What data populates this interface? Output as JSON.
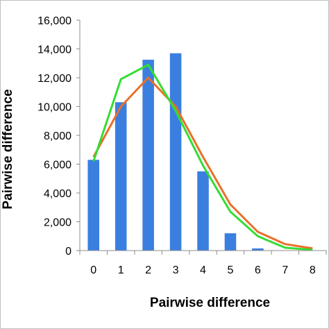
{
  "chart_data": {
    "type": "bar",
    "title": "",
    "xlabel": "Pairwise difference",
    "ylabel": "Pairwise difference",
    "categories": [
      "0",
      "1",
      "2",
      "3",
      "4",
      "5",
      "6",
      "7",
      "8"
    ],
    "ylim": [
      0,
      16000
    ],
    "yticks": [
      "0",
      "2,000",
      "4,000",
      "6,000",
      "8,000",
      "10,000",
      "12,000",
      "14,000",
      "16,000"
    ],
    "grid": false,
    "legend": "none",
    "series": [
      {
        "type": "bar",
        "color": "#3a7fe0",
        "values": [
          6300,
          10300,
          13250,
          13700,
          5500,
          1200,
          150,
          0,
          0
        ]
      },
      {
        "type": "line",
        "color": "#e8702a",
        "values": [
          6500,
          10000,
          12000,
          10000,
          6500,
          3200,
          1300,
          450,
          150
        ]
      },
      {
        "type": "line",
        "color": "#33dd33",
        "values": [
          6200,
          11900,
          12900,
          9700,
          5900,
          2700,
          1000,
          200,
          50
        ]
      }
    ]
  }
}
